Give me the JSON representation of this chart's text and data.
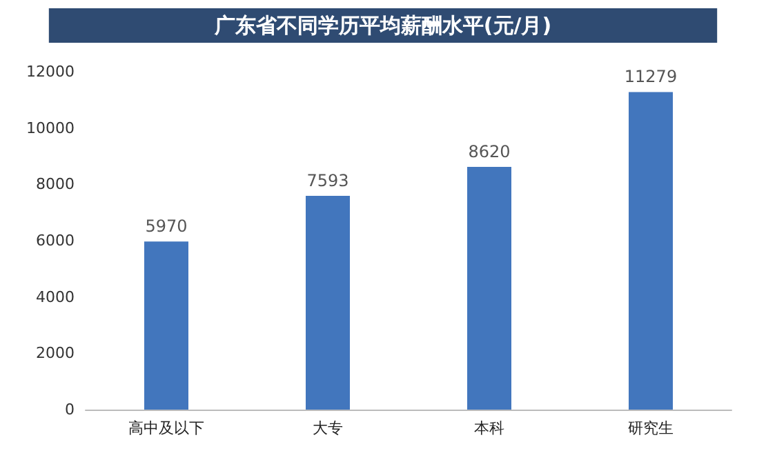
{
  "chart_data": {
    "type": "bar",
    "title": "广东省不同学历平均薪酬水平(元/月)",
    "categories": [
      "高中及以下",
      "大专",
      "本科",
      "研究生"
    ],
    "values": [
      5970,
      7593,
      8620,
      11279
    ],
    "color": "#4276bd",
    "ylim": [
      0,
      12000
    ],
    "yticks": [
      0,
      2000,
      4000,
      6000,
      8000,
      10000,
      12000
    ],
    "grid": false,
    "data_labels": true
  }
}
